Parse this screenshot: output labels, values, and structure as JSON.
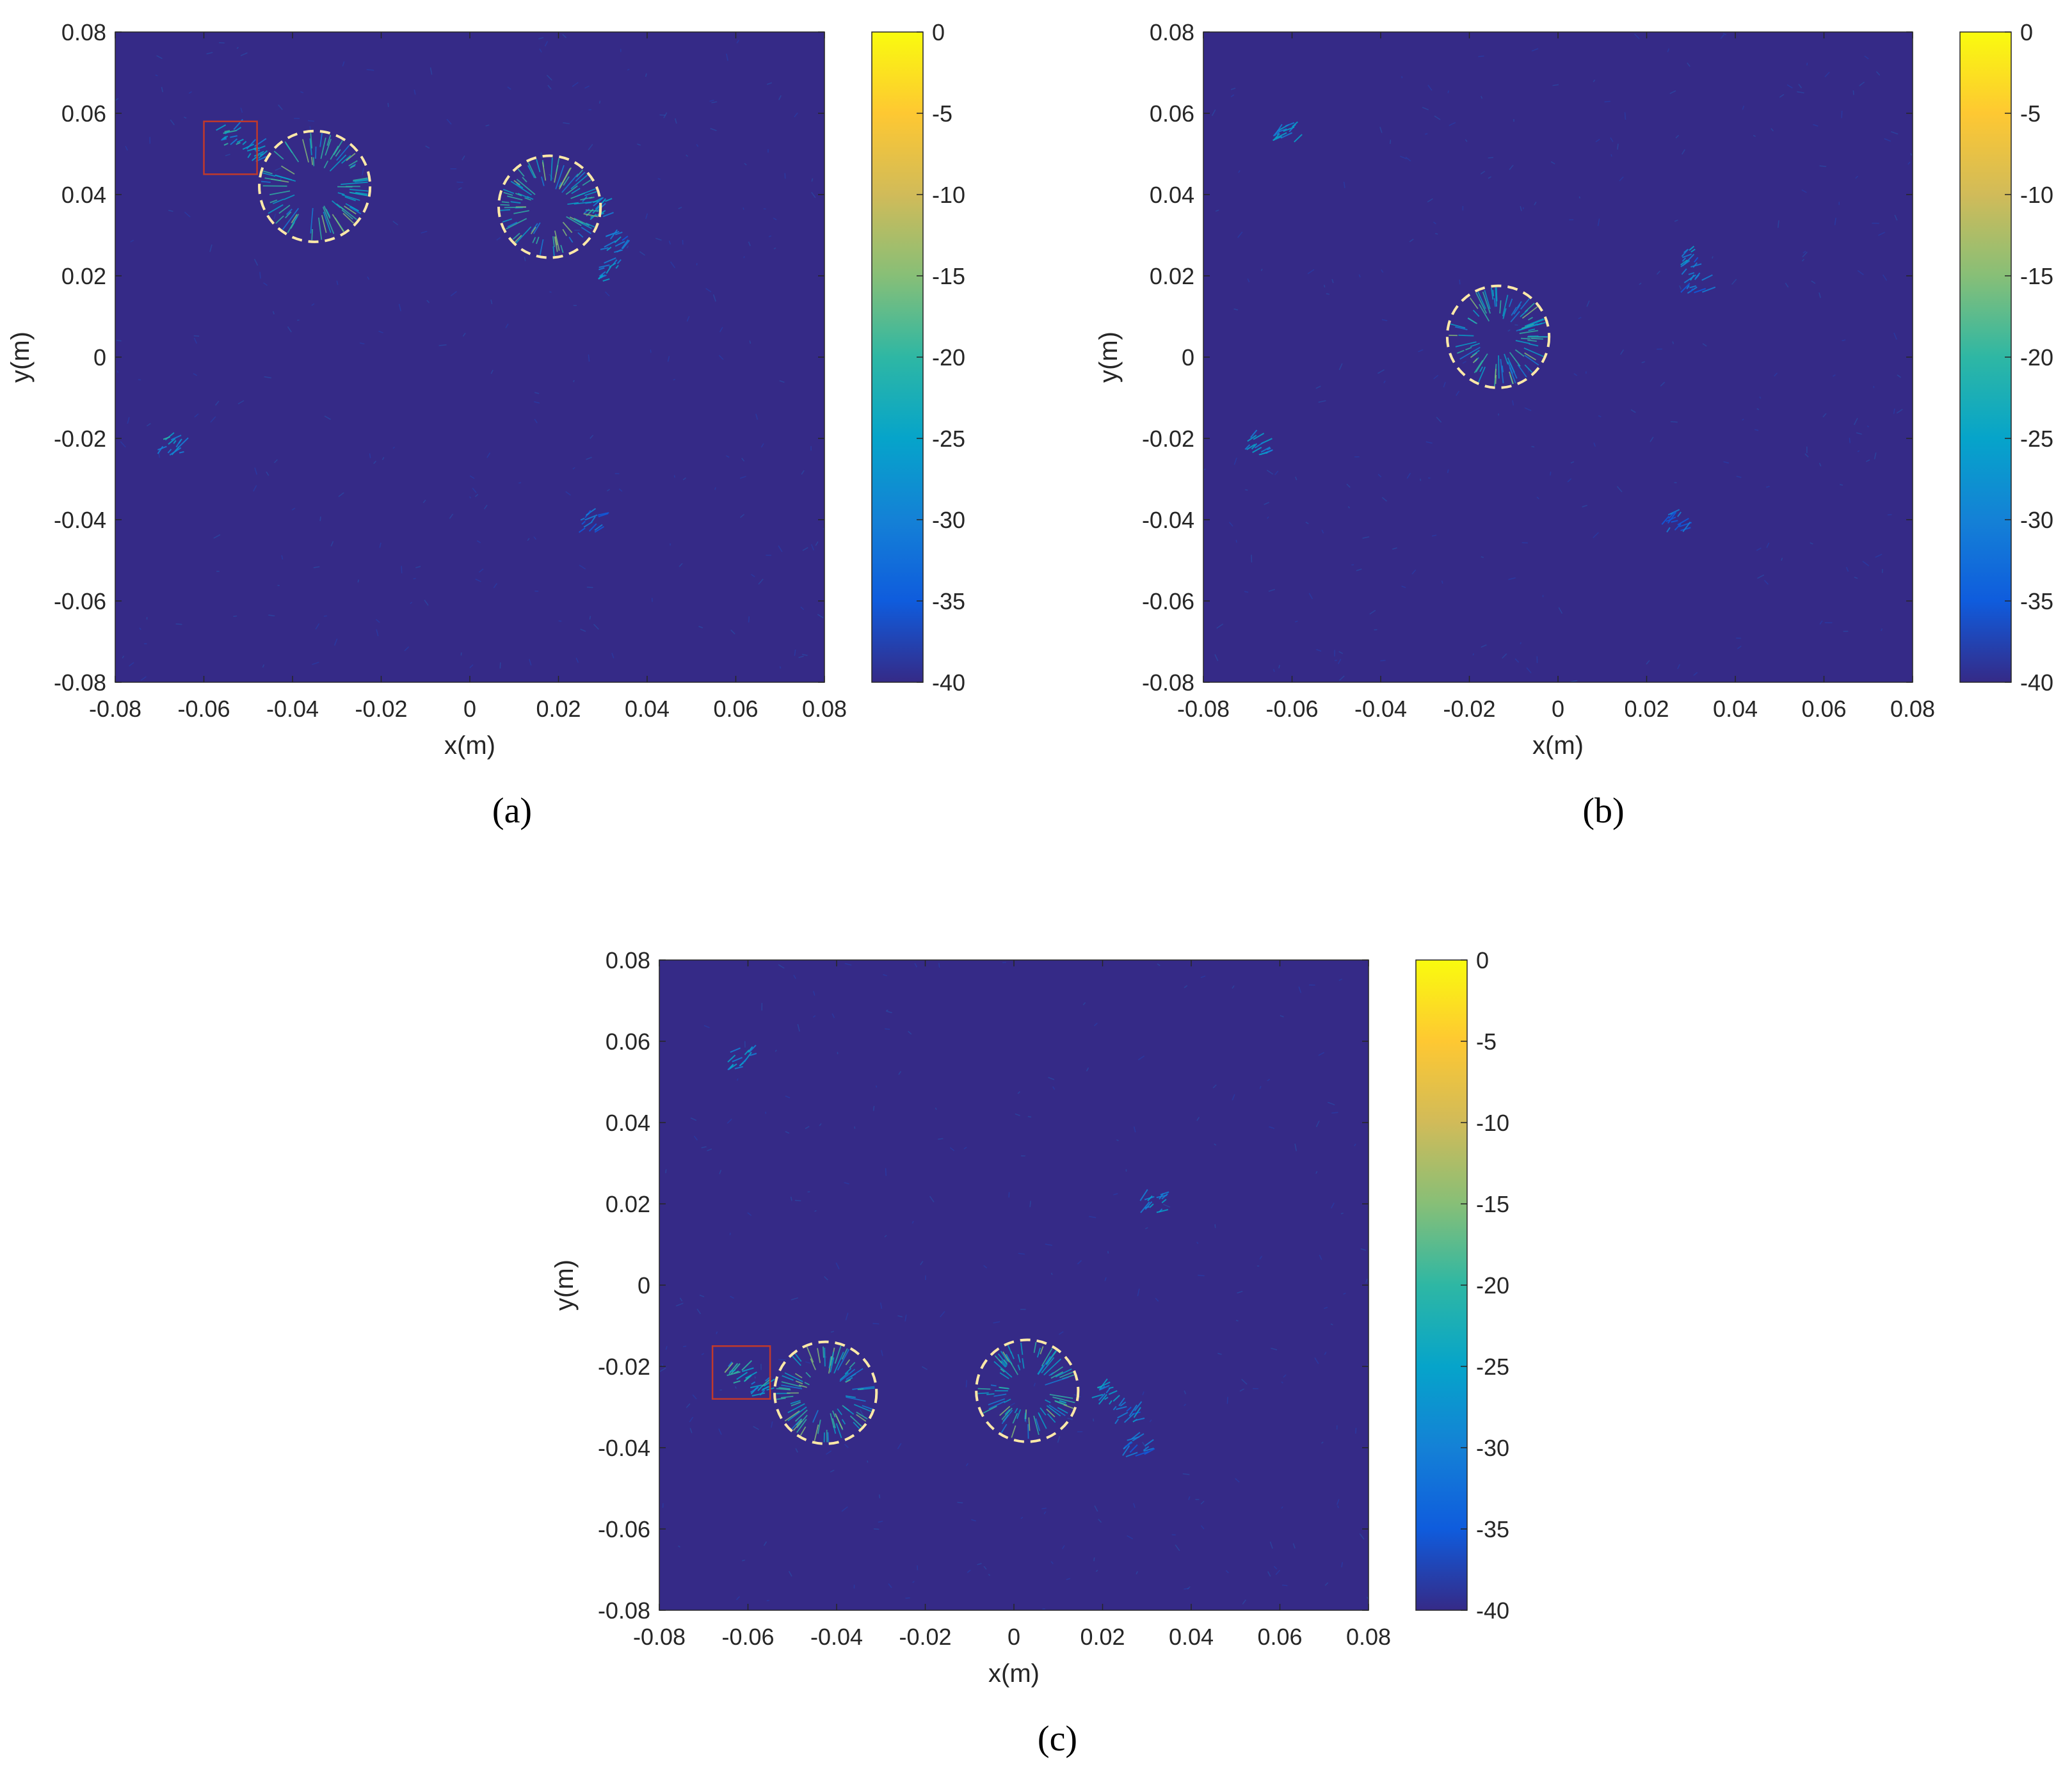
{
  "figure": {
    "background": "#ffffff",
    "plot_background": "#352a87",
    "colormap_name": "parula",
    "colormap_stops": [
      "#352a87",
      "#0f5cdd",
      "#1481d6",
      "#06a4ca",
      "#2eb7a4",
      "#87bf77",
      "#d1bb59",
      "#fec832",
      "#f9fb0e"
    ]
  },
  "chart_data": [
    {
      "type": "heatmap",
      "caption": "(a)",
      "xlabel": "x(m)",
      "ylabel": "y(m)",
      "xlim": [
        -0.08,
        0.08
      ],
      "ylim": [
        -0.08,
        0.08
      ],
      "xticks": [
        "-0.08",
        "-0.06",
        "-0.04",
        "-0.02",
        "0",
        "0.02",
        "0.04",
        "0.06",
        "0.08"
      ],
      "yticks": [
        "0.08",
        "0.06",
        "0.04",
        "0.02",
        "0",
        "-0.02",
        "-0.04",
        "-0.06",
        "-0.08"
      ],
      "colorbar": {
        "range": [
          -40,
          0
        ],
        "ticks": [
          "0",
          "-5",
          "-10",
          "-15",
          "-20",
          "-25",
          "-30",
          "-35",
          "-40"
        ]
      },
      "circles": [
        {
          "cx": -0.035,
          "cy": 0.042,
          "r": 0.0125,
          "color": "#ffe9a8"
        },
        {
          "cx": 0.018,
          "cy": 0.037,
          "r": 0.0115,
          "color": "#ffe9a8"
        }
      ],
      "rectangles": [
        {
          "x0": -0.06,
          "x1": -0.048,
          "y0": 0.045,
          "y1": 0.058,
          "color": "#c0392b"
        }
      ],
      "speckles": [
        {
          "x": -0.055,
          "y": 0.054,
          "strength": 0.35
        },
        {
          "x": -0.05,
          "y": 0.05,
          "strength": 0.3
        },
        {
          "x": 0.028,
          "y": 0.036,
          "strength": 0.3
        },
        {
          "x": 0.031,
          "y": 0.021,
          "strength": 0.25
        },
        {
          "x": 0.032,
          "y": 0.028,
          "strength": 0.22
        },
        {
          "x": -0.068,
          "y": -0.022,
          "strength": 0.3
        },
        {
          "x": 0.027,
          "y": -0.041,
          "strength": 0.15
        }
      ]
    },
    {
      "type": "heatmap",
      "caption": "(b)",
      "xlabel": "x(m)",
      "ylabel": "y(m)",
      "xlim": [
        -0.08,
        0.08
      ],
      "ylim": [
        -0.08,
        0.08
      ],
      "xticks": [
        "-0.08",
        "-0.06",
        "-0.04",
        "-0.02",
        "0",
        "0.02",
        "0.04",
        "0.06",
        "0.08"
      ],
      "yticks": [
        "0.08",
        "0.06",
        "0.04",
        "0.02",
        "0",
        "-0.02",
        "-0.04",
        "-0.06",
        "-0.08"
      ],
      "colorbar": {
        "range": [
          -40,
          0
        ],
        "ticks": [
          "0",
          "-5",
          "-10",
          "-15",
          "-20",
          "-25",
          "-30",
          "-35",
          "-40"
        ]
      },
      "circles": [
        {
          "cx": -0.0135,
          "cy": 0.005,
          "r": 0.0115,
          "color": "#ffe9a8"
        }
      ],
      "rectangles": [],
      "speckles": [
        {
          "x": -0.062,
          "y": 0.055,
          "strength": 0.3
        },
        {
          "x": 0.03,
          "y": 0.024,
          "strength": 0.22
        },
        {
          "x": 0.03,
          "y": 0.018,
          "strength": 0.2
        },
        {
          "x": -0.068,
          "y": -0.022,
          "strength": 0.25
        },
        {
          "x": 0.026,
          "y": -0.041,
          "strength": 0.12
        }
      ]
    },
    {
      "type": "heatmap",
      "caption": "(c)",
      "xlabel": "x(m)",
      "ylabel": "y(m)",
      "xlim": [
        -0.08,
        0.08
      ],
      "ylim": [
        -0.08,
        0.08
      ],
      "xticks": [
        "-0.08",
        "-0.06",
        "-0.04",
        "-0.02",
        "0",
        "0.02",
        "0.04",
        "0.06",
        "0.08"
      ],
      "yticks": [
        "0.08",
        "0.06",
        "0.04",
        "0.02",
        "0",
        "-0.02",
        "-0.04",
        "-0.06",
        "-0.08"
      ],
      "colorbar": {
        "range": [
          -40,
          0
        ],
        "ticks": [
          "0",
          "-5",
          "-10",
          "-15",
          "-20",
          "-25",
          "-30",
          "-35",
          "-40"
        ]
      },
      "circles": [
        {
          "cx": -0.0425,
          "cy": -0.0265,
          "r": 0.0115,
          "color": "#ffe9a8"
        },
        {
          "cx": 0.003,
          "cy": -0.026,
          "r": 0.0115,
          "color": "#ffe9a8"
        }
      ],
      "rectangles": [
        {
          "x0": -0.068,
          "x1": -0.055,
          "y0": -0.028,
          "y1": -0.015,
          "color": "#c0392b"
        }
      ],
      "speckles": [
        {
          "x": -0.063,
          "y": -0.022,
          "strength": 0.4
        },
        {
          "x": -0.058,
          "y": -0.025,
          "strength": 0.3
        },
        {
          "x": 0.02,
          "y": -0.027,
          "strength": 0.3
        },
        {
          "x": 0.025,
          "y": -0.032,
          "strength": 0.22
        },
        {
          "x": 0.031,
          "y": 0.02,
          "strength": 0.25
        },
        {
          "x": -0.062,
          "y": 0.055,
          "strength": 0.3
        },
        {
          "x": 0.027,
          "y": -0.04,
          "strength": 0.15
        }
      ]
    }
  ]
}
